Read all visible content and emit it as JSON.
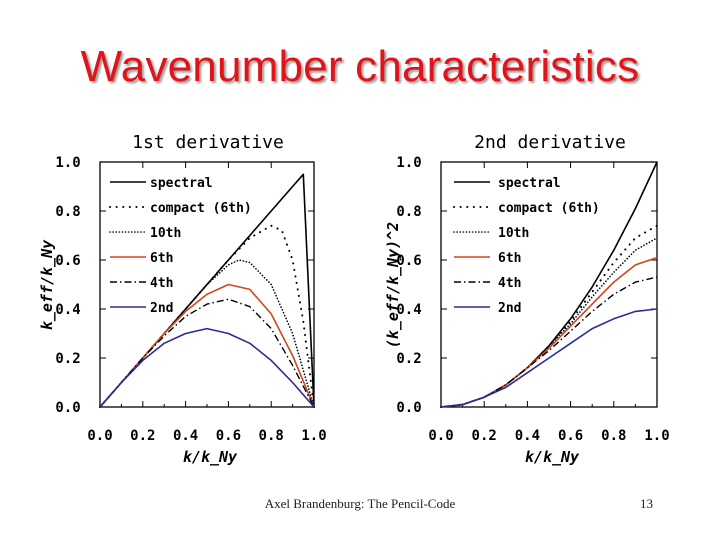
{
  "slide": {
    "title": "Wavenumber characteristics",
    "footer": "Axel Brandenburg: The Pencil-Code",
    "page_number": "13"
  },
  "colors": {
    "title": "#e0141a",
    "red_series": "#d0461e",
    "blue_series": "#2b2b9a",
    "black": "#000000"
  },
  "chart_data": [
    {
      "type": "line",
      "title": "1st derivative",
      "xlabel": "k/k_Ny",
      "ylabel": "k_eff/k_Ny",
      "xlim": [
        0,
        1
      ],
      "ylim": [
        0,
        1
      ],
      "x_ticks": [
        "0.0",
        "0.2",
        "0.4",
        "0.6",
        "0.8",
        "1.0"
      ],
      "y_ticks": [
        "0.0",
        "0.2",
        "0.4",
        "0.6",
        "0.8",
        "1.0"
      ],
      "legend": [
        "spectral",
        "compact (6th)",
        "10th",
        "6th",
        "4th",
        "2nd"
      ],
      "series": [
        {
          "name": "spectral",
          "style": "solid",
          "color": "#000000",
          "x": [
            0,
            0.1,
            0.2,
            0.3,
            0.4,
            0.5,
            0.6,
            0.7,
            0.8,
            0.9,
            0.95,
            1.0
          ],
          "values": [
            0,
            0.1,
            0.2,
            0.3,
            0.4,
            0.5,
            0.6,
            0.7,
            0.8,
            0.9,
            0.95,
            0.0
          ]
        },
        {
          "name": "compact (6th)",
          "style": "loose-dots",
          "color": "#000000",
          "x": [
            0,
            0.1,
            0.2,
            0.3,
            0.4,
            0.5,
            0.6,
            0.7,
            0.8,
            0.85,
            0.9,
            0.95,
            1.0
          ],
          "values": [
            0,
            0.1,
            0.2,
            0.3,
            0.4,
            0.5,
            0.6,
            0.69,
            0.74,
            0.72,
            0.6,
            0.35,
            0.0
          ]
        },
        {
          "name": "10th",
          "style": "dotted",
          "color": "#000000",
          "x": [
            0,
            0.1,
            0.2,
            0.3,
            0.4,
            0.5,
            0.6,
            0.65,
            0.7,
            0.8,
            0.9,
            1.0
          ],
          "values": [
            0,
            0.1,
            0.2,
            0.3,
            0.4,
            0.5,
            0.58,
            0.6,
            0.59,
            0.5,
            0.3,
            0.0
          ]
        },
        {
          "name": "6th",
          "style": "solid",
          "color": "#d0461e",
          "x": [
            0,
            0.1,
            0.2,
            0.3,
            0.4,
            0.5,
            0.6,
            0.7,
            0.8,
            0.9,
            1.0
          ],
          "values": [
            0,
            0.1,
            0.2,
            0.3,
            0.39,
            0.46,
            0.5,
            0.48,
            0.38,
            0.21,
            0.0
          ]
        },
        {
          "name": "4th",
          "style": "dash-dot",
          "color": "#000000",
          "x": [
            0,
            0.1,
            0.2,
            0.3,
            0.4,
            0.5,
            0.6,
            0.7,
            0.8,
            0.9,
            1.0
          ],
          "values": [
            0,
            0.1,
            0.2,
            0.29,
            0.37,
            0.42,
            0.44,
            0.41,
            0.32,
            0.17,
            0.0
          ]
        },
        {
          "name": "2nd",
          "style": "solid",
          "color": "#2b2b9a",
          "x": [
            0,
            0.1,
            0.2,
            0.3,
            0.4,
            0.5,
            0.6,
            0.7,
            0.8,
            0.9,
            1.0
          ],
          "values": [
            0,
            0.1,
            0.19,
            0.26,
            0.3,
            0.32,
            0.3,
            0.26,
            0.19,
            0.1,
            0.0
          ]
        }
      ]
    },
    {
      "type": "line",
      "title": "2nd derivative",
      "xlabel": "k/k_Ny",
      "ylabel": "(k_eff/k_Ny)^2",
      "xlim": [
        0,
        1
      ],
      "ylim": [
        0,
        1
      ],
      "x_ticks": [
        "0.0",
        "0.2",
        "0.4",
        "0.6",
        "0.8",
        "1.0"
      ],
      "y_ticks": [
        "0.0",
        "0.2",
        "0.4",
        "0.6",
        "0.8",
        "1.0"
      ],
      "legend": [
        "spectral",
        "compact (6th)",
        "10th",
        "6th",
        "4th",
        "2nd"
      ],
      "series": [
        {
          "name": "spectral",
          "style": "solid",
          "color": "#000000",
          "x": [
            0,
            0.1,
            0.2,
            0.3,
            0.4,
            0.5,
            0.6,
            0.7,
            0.8,
            0.9,
            1.0
          ],
          "values": [
            0,
            0.01,
            0.04,
            0.09,
            0.16,
            0.25,
            0.36,
            0.49,
            0.64,
            0.81,
            1.0
          ]
        },
        {
          "name": "compact (6th)",
          "style": "loose-dots",
          "color": "#000000",
          "x": [
            0,
            0.1,
            0.2,
            0.3,
            0.4,
            0.5,
            0.6,
            0.7,
            0.8,
            0.9,
            1.0
          ],
          "values": [
            0,
            0.01,
            0.04,
            0.09,
            0.16,
            0.25,
            0.35,
            0.47,
            0.59,
            0.69,
            0.74
          ]
        },
        {
          "name": "10th",
          "style": "dotted",
          "color": "#000000",
          "x": [
            0,
            0.1,
            0.2,
            0.3,
            0.4,
            0.5,
            0.6,
            0.7,
            0.8,
            0.9,
            1.0
          ],
          "values": [
            0,
            0.01,
            0.04,
            0.09,
            0.16,
            0.25,
            0.34,
            0.45,
            0.55,
            0.64,
            0.69
          ]
        },
        {
          "name": "6th",
          "style": "solid",
          "color": "#d0461e",
          "x": [
            0,
            0.1,
            0.2,
            0.3,
            0.4,
            0.5,
            0.6,
            0.7,
            0.8,
            0.9,
            1.0
          ],
          "values": [
            0,
            0.01,
            0.04,
            0.09,
            0.16,
            0.24,
            0.33,
            0.42,
            0.51,
            0.58,
            0.61
          ]
        },
        {
          "name": "4th",
          "style": "dash-dot",
          "color": "#000000",
          "x": [
            0,
            0.1,
            0.2,
            0.3,
            0.4,
            0.5,
            0.6,
            0.7,
            0.8,
            0.9,
            1.0
          ],
          "values": [
            0,
            0.01,
            0.04,
            0.09,
            0.16,
            0.23,
            0.31,
            0.39,
            0.46,
            0.51,
            0.53
          ]
        },
        {
          "name": "2nd",
          "style": "solid",
          "color": "#2b2b9a",
          "x": [
            0,
            0.1,
            0.2,
            0.3,
            0.4,
            0.5,
            0.6,
            0.7,
            0.8,
            0.9,
            1.0
          ],
          "values": [
            0,
            0.01,
            0.04,
            0.08,
            0.14,
            0.2,
            0.26,
            0.32,
            0.36,
            0.39,
            0.4
          ]
        }
      ]
    }
  ]
}
